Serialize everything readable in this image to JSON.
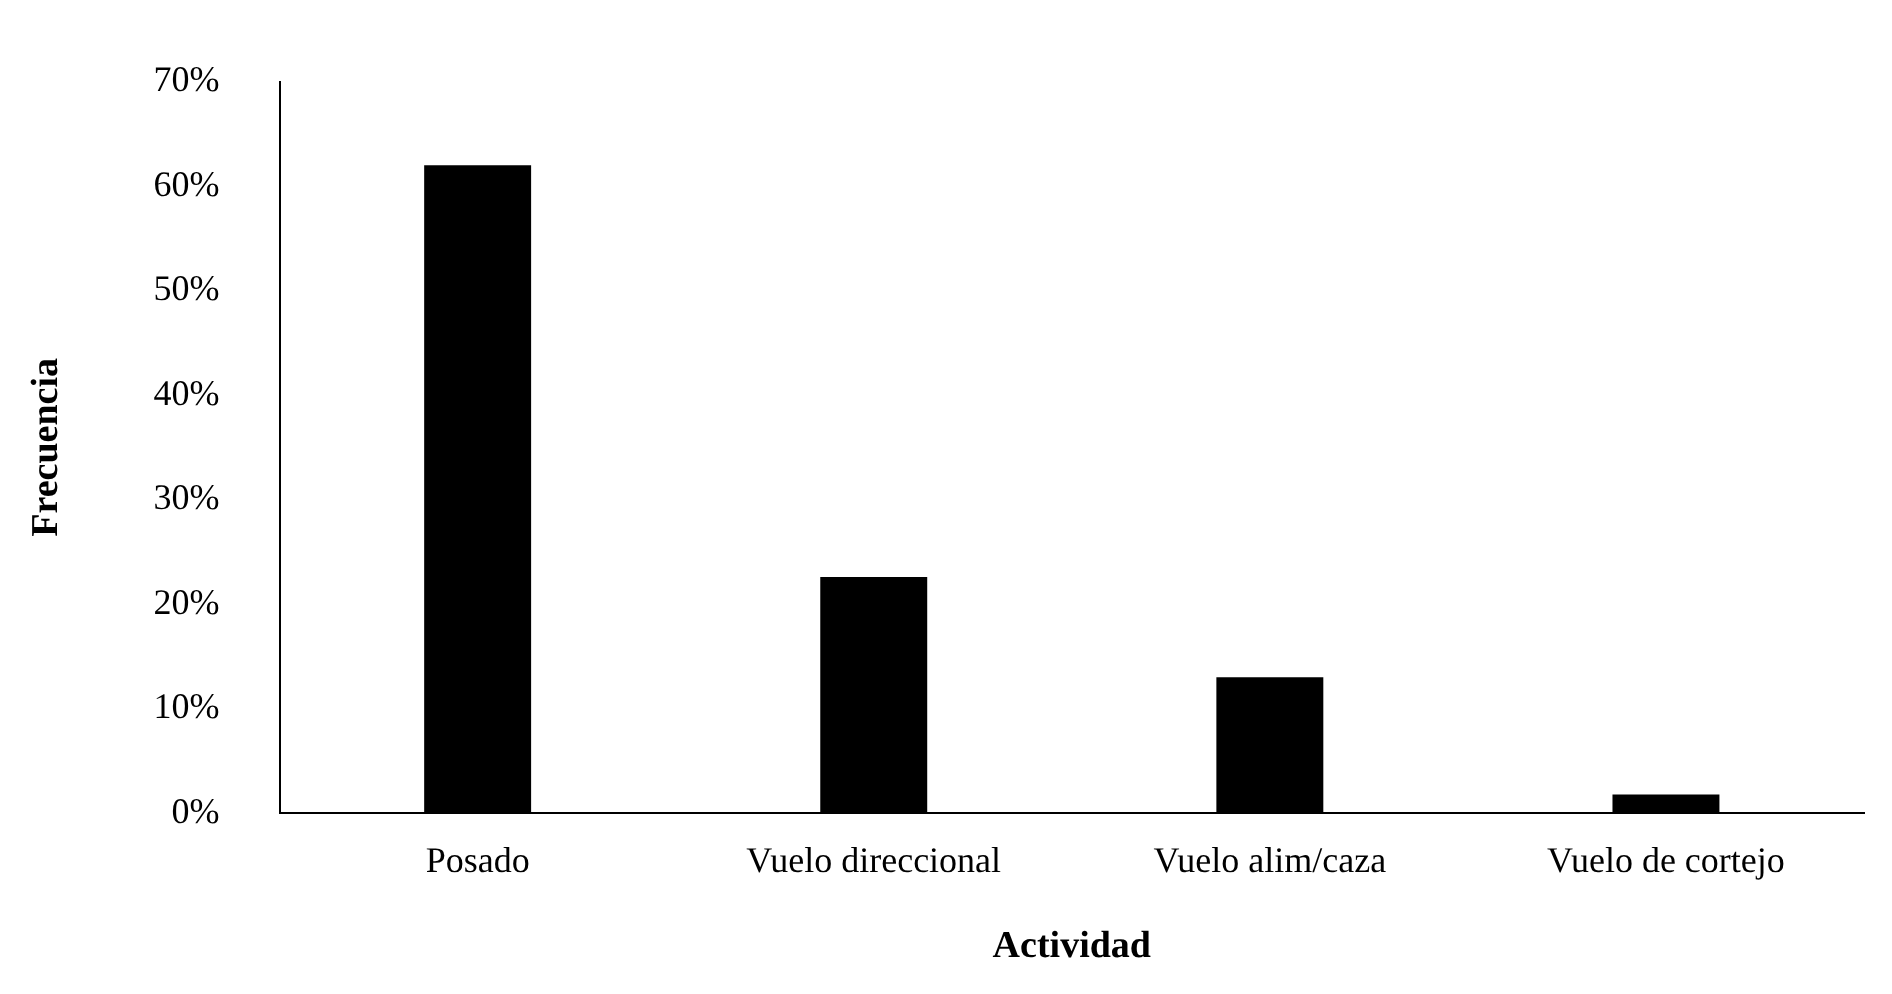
{
  "chart_data": {
    "type": "bar",
    "xlabel": "Actividad",
    "ylabel": "Frecuencia",
    "categories": [
      "Posado",
      "Vuelo direccional",
      "Vuelo alim/caza",
      "Vuelo de cortejo"
    ],
    "values": [
      62,
      22.6,
      13,
      1.8
    ],
    "color": "#000000",
    "ylim": [
      0,
      70
    ],
    "yticks": [
      {
        "value": 0,
        "label": "0%"
      },
      {
        "value": 10,
        "label": "10%"
      },
      {
        "value": 20,
        "label": "20%"
      },
      {
        "value": 30,
        "label": "30%"
      },
      {
        "value": 40,
        "label": "40%"
      },
      {
        "value": 50,
        "label": "50%"
      },
      {
        "value": 60,
        "label": "60%"
      },
      {
        "value": 70,
        "label": "70%"
      }
    ],
    "grid": false,
    "legend": false
  }
}
